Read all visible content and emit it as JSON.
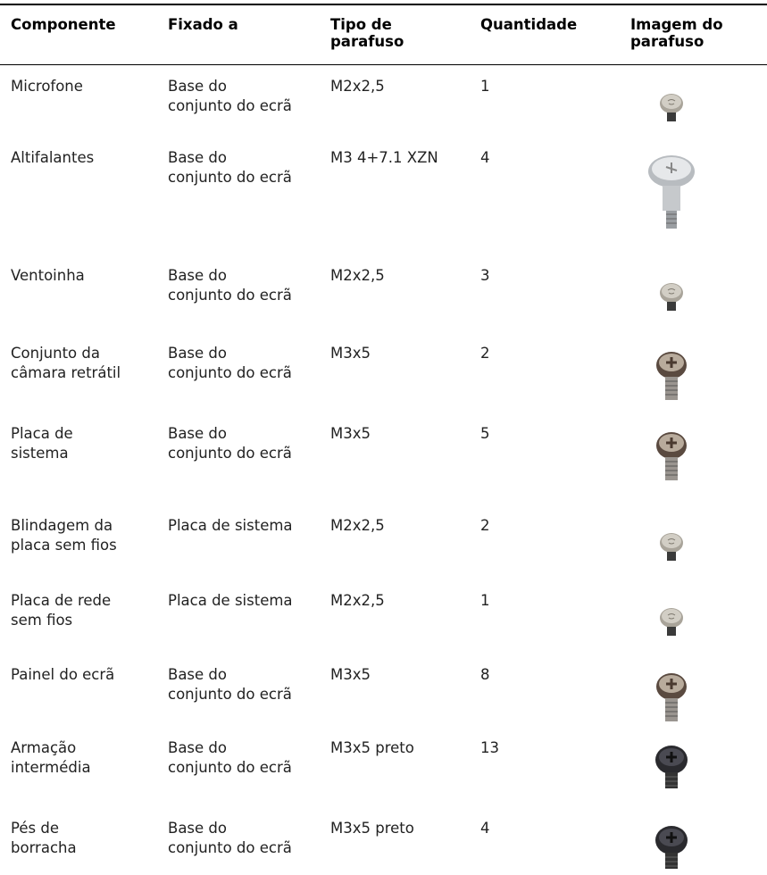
{
  "table": {
    "header": [
      "Componente",
      "Fixado a",
      "Tipo de\nparafuso",
      "Quantidade",
      "Imagem do\nparafuso"
    ],
    "rows": [
      [
        "Microfone",
        "Base do\nconjunto do ecrã",
        "M2x2,5",
        1
      ],
      [
        "Altifalantes",
        "Base do\nconjunto do ecrã",
        "M3 4+7.1 XZN",
        4
      ],
      [
        "Ventoinha",
        "Base do\nconjunto do ecrã",
        "M2x2,5",
        3
      ],
      [
        "Conjunto da\ncâmara retrátil",
        "Base do\nconjunto do ecrã",
        "M3x5",
        2
      ],
      [
        "Placa de\nsistema",
        "Base do\nconjunto do ecrã",
        "M3x5",
        5
      ],
      [
        "Blindagem da\nplaca sem fios",
        "Placa de sistema",
        "M2x2,5",
        2
      ],
      [
        "Placa de rede\nsem fios",
        "Placa de sistema",
        "M2x2,5",
        1
      ],
      [
        "Painel do ecrã",
        "Base do\nconjunto do ecrã",
        "M3x5",
        8
      ],
      [
        "Armação\nintermédia",
        "Base do\nconjunto do ecrã",
        "M3x5 preto",
        13
      ],
      [
        "Pés de\nborracha",
        "Base do\nconjunto do ecrã",
        "M3x5 preto",
        4
      ]
    ]
  }
}
